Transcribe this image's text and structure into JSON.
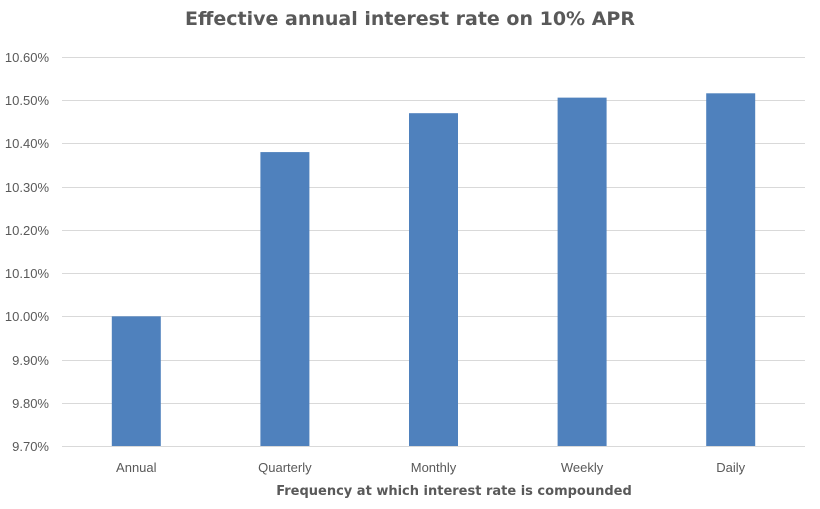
{
  "chart_data": {
    "type": "bar",
    "title": "Effective annual interest rate on 10% APR",
    "xlabel": "Frequency at which interest rate is compounded",
    "ylabel": "",
    "categories": [
      "Annual",
      "Quarterly",
      "Monthly",
      "Weekly",
      "Daily"
    ],
    "values": [
      10.0,
      10.38,
      10.47,
      10.506,
      10.516
    ],
    "ylim": [
      9.7,
      10.6
    ],
    "yticks": [
      9.7,
      9.8,
      9.9,
      10.0,
      10.1,
      10.2,
      10.3,
      10.4,
      10.5,
      10.6
    ],
    "ytick_labels": [
      "9.70%",
      "9.80%",
      "9.90%",
      "10.00%",
      "10.10%",
      "10.20%",
      "10.30%",
      "10.40%",
      "10.50%",
      "10.60%"
    ],
    "grid": true,
    "legend": "none",
    "bar_color": "#4f81bd",
    "grid_color": "#d9d9d9"
  }
}
